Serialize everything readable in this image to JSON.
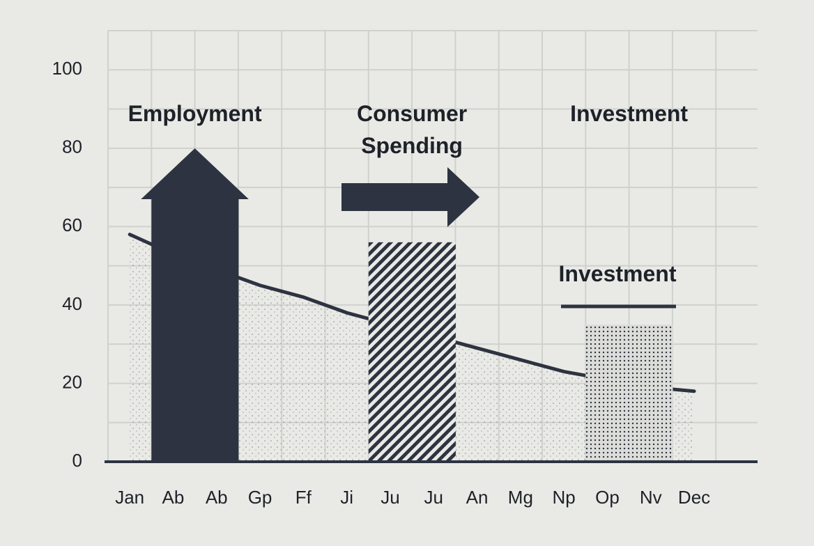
{
  "chart_data": {
    "type": "combo",
    "categories": [
      "Jan",
      "Ab",
      "Ab",
      "Gp",
      "Ff",
      "Ji",
      "Ju",
      "Ju",
      "An",
      "Mg",
      "Np",
      "Op",
      "Nv",
      "Dec"
    ],
    "series": [
      {
        "name": "Employment",
        "type": "bar",
        "color": "#2d3340",
        "fill": "solid",
        "values": [
          null,
          67,
          67,
          null,
          null,
          null,
          null,
          null,
          null,
          null,
          null,
          null,
          null,
          null
        ]
      },
      {
        "name": "Consumer Spending",
        "type": "bar",
        "color": "#2d3340",
        "fill": "hatch",
        "values": [
          null,
          null,
          null,
          null,
          null,
          null,
          56,
          56,
          null,
          null,
          null,
          null,
          null,
          null
        ]
      },
      {
        "name": "Investment",
        "type": "bar",
        "color": "#2d3340",
        "fill": "dots",
        "values": [
          null,
          null,
          null,
          null,
          null,
          null,
          null,
          null,
          null,
          null,
          null,
          35,
          35,
          null
        ]
      },
      {
        "name": "Investment",
        "type": "line",
        "color": "#2d3340",
        "values": [
          58,
          53,
          49,
          45,
          42,
          38,
          35,
          32,
          29,
          26,
          23,
          21,
          19,
          18
        ]
      }
    ],
    "ylim": [
      0,
      110
    ],
    "yticks": [
      0,
      20,
      40,
      60,
      80,
      100
    ],
    "grid": true
  }
}
